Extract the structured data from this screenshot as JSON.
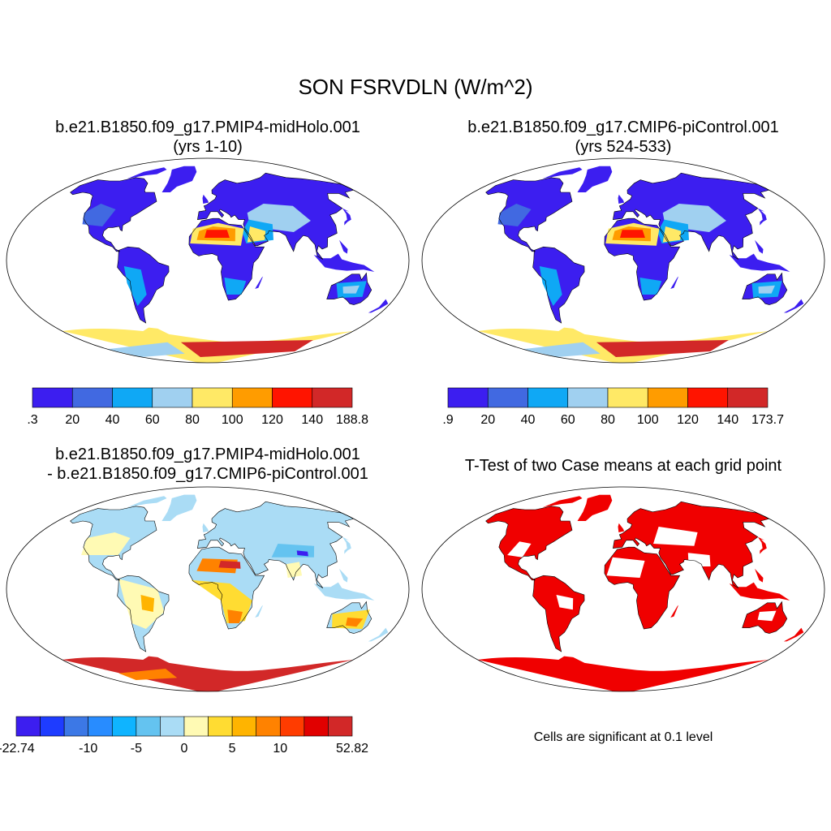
{
  "title": "SON FSRVDLN (W/m^2)",
  "panels": {
    "case1": {
      "line1": "b.e21.B1850.f09_g17.PMIP4-midHolo.001",
      "line2": "(yrs 1-10)",
      "colorbar": {
        "colors": [
          "#3c1ef0",
          "#4169e1",
          "#0fa8f5",
          "#a0d0f0",
          "#ffe966",
          "#ff9c00",
          "#ff1400",
          "#d22828"
        ],
        "labels": [
          ".3",
          "20",
          "40",
          "60",
          "80",
          "100",
          "120",
          "140",
          "188.8"
        ]
      }
    },
    "case2": {
      "line1": "b.e21.B1850.f09_g17.CMIP6-piControl.001",
      "line2": "(yrs 524-533)",
      "colorbar": {
        "colors": [
          "#3c1ef0",
          "#4169e1",
          "#0fa8f5",
          "#a0d0f0",
          "#ffe966",
          "#ff9c00",
          "#ff1400",
          "#d22828"
        ],
        "labels": [
          ".9",
          "20",
          "40",
          "60",
          "80",
          "100",
          "120",
          "140",
          "173.7"
        ]
      }
    },
    "diff": {
      "line1": "b.e21.B1850.f09_g17.PMIP4-midHolo.001",
      "line2": "- b.e21.B1850.f09_g17.CMIP6-piControl.001",
      "colorbar": {
        "colors": [
          "#3c1ef0",
          "#1e3cff",
          "#3c78e6",
          "#288cff",
          "#0fb4ff",
          "#64c3f0",
          "#aadcf5",
          "#fffab4",
          "#ffdc32",
          "#ffb400",
          "#ff8200",
          "#ff3c00",
          "#e10000",
          "#d22828"
        ],
        "labels": [
          "-22.74",
          "-10",
          "-5",
          "0",
          "5",
          "10",
          "52.82"
        ]
      }
    },
    "ttest": {
      "title": "T-Test of two Case means at each grid point",
      "note": "Cells are significant at 0.1 level",
      "color": "#f00000"
    }
  }
}
